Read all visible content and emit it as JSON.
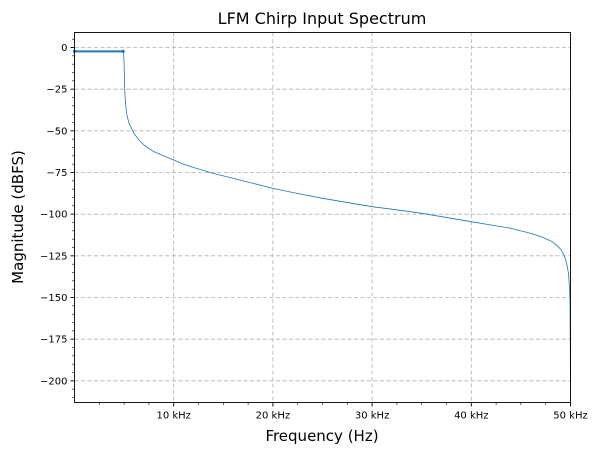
{
  "chart_data": {
    "type": "line",
    "title": "LFM Chirp Input Spectrum",
    "xlabel": "Frequency (Hz)",
    "ylabel": "Magnitude (dBFS)",
    "xlim": [
      0,
      50000
    ],
    "ylim": [
      -213,
      9
    ],
    "x_ticks": [
      {
        "value": 10000,
        "label": "10 kHz"
      },
      {
        "value": 20000,
        "label": "20 kHz"
      },
      {
        "value": 30000,
        "label": "30 kHz"
      },
      {
        "value": 40000,
        "label": "40 kHz"
      },
      {
        "value": 50000,
        "label": "50 kHz"
      }
    ],
    "y_ticks": [
      {
        "value": 0,
        "label": "0"
      },
      {
        "value": -25,
        "label": "−25"
      },
      {
        "value": -50,
        "label": "−50"
      },
      {
        "value": -75,
        "label": "−75"
      },
      {
        "value": -100,
        "label": "−100"
      },
      {
        "value": -125,
        "label": "−125"
      },
      {
        "value": -150,
        "label": "−150"
      },
      {
        "value": -175,
        "label": "−175"
      },
      {
        "value": -200,
        "label": "−200"
      }
    ],
    "grid": true,
    "line_color": "#1f77b4",
    "series": [
      {
        "x": [
          0,
          500,
          1000,
          2000,
          3000,
          4000,
          4600,
          4800,
          4900,
          4950,
          5000,
          5050,
          5100,
          5200,
          5300,
          5500,
          6000,
          6500,
          7000,
          8000,
          9000,
          10000,
          11000,
          12000,
          14000,
          16000,
          18000,
          20000,
          22000,
          25000,
          28000,
          30000,
          32000,
          35000,
          38000,
          40000,
          42000,
          44000,
          45000,
          46000,
          47000,
          48000,
          48500,
          49000,
          49300,
          49500,
          49700,
          49800,
          49900,
          49950,
          50000
        ],
        "y": [
          -2.3,
          -2.3,
          -2.3,
          -2.3,
          -2.3,
          -2.3,
          -2.3,
          -2.3,
          -2.3,
          -2.5,
          -10,
          -22,
          -30,
          -37,
          -41,
          -45.5,
          -51.5,
          -55.5,
          -58.5,
          -62.5,
          -65,
          -67.5,
          -70,
          -72,
          -75.5,
          -78.5,
          -81.5,
          -84.5,
          -87,
          -90.5,
          -93.5,
          -95.5,
          -97,
          -99.5,
          -102.5,
          -104.5,
          -106.5,
          -108.5,
          -110,
          -111.5,
          -113.5,
          -116,
          -118,
          -121,
          -124,
          -127,
          -132,
          -136,
          -144,
          -152,
          -203
        ]
      }
    ]
  }
}
